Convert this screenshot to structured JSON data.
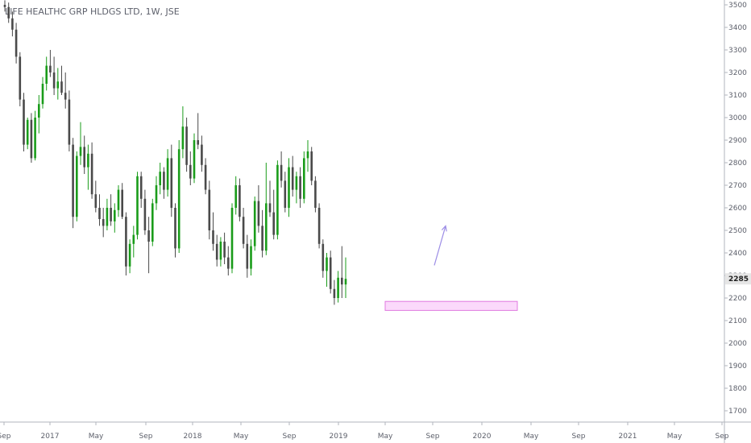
{
  "chart_data": {
    "type": "candlestick",
    "title": "LIFE HEALTHC GRP HLDGS LTD, 1W, JSE",
    "x_tick_labels": [
      "Sep",
      "2017",
      "May",
      "Sep",
      "2018",
      "May",
      "Sep",
      "2019",
      "May",
      "Sep",
      "2020",
      "May",
      "Sep",
      "2021",
      "May",
      "Sep"
    ],
    "y_tick_labels": [
      "3500",
      "3400",
      "3300",
      "3200",
      "3100",
      "3000",
      "2900",
      "2800",
      "2700",
      "2600",
      "2500",
      "2400",
      "2300",
      "2200",
      "2100",
      "2000",
      "1900",
      "1800",
      "1700"
    ],
    "ylim": [
      1640,
      3530
    ],
    "last_price": "2285",
    "grid": false,
    "colors": {
      "up": "#1a9c1a",
      "down": "#4a4a4a",
      "wick_up": "#1a9c1a",
      "wick_down": "#4a4a4a",
      "zone_fill": "#fbd9fb",
      "zone_stroke": "#e07ae0",
      "arrow": "#9d8ee6"
    },
    "candles": [
      {
        "o": 3500,
        "h": 3520,
        "l": 3470,
        "c": 3490
      },
      {
        "o": 3490,
        "h": 3510,
        "l": 3420,
        "c": 3440
      },
      {
        "o": 3440,
        "h": 3470,
        "l": 3360,
        "c": 3390
      },
      {
        "o": 3390,
        "h": 3420,
        "l": 3240,
        "c": 3270
      },
      {
        "o": 3270,
        "h": 3290,
        "l": 3050,
        "c": 3080
      },
      {
        "o": 3080,
        "h": 3110,
        "l": 2850,
        "c": 2880
      },
      {
        "o": 2880,
        "h": 3000,
        "l": 2860,
        "c": 2990
      },
      {
        "o": 2990,
        "h": 3020,
        "l": 2800,
        "c": 2820
      },
      {
        "o": 2820,
        "h": 3030,
        "l": 2810,
        "c": 3000
      },
      {
        "o": 3000,
        "h": 3100,
        "l": 2930,
        "c": 3060
      },
      {
        "o": 3060,
        "h": 3180,
        "l": 3040,
        "c": 3150
      },
      {
        "o": 3150,
        "h": 3270,
        "l": 3120,
        "c": 3230
      },
      {
        "o": 3230,
        "h": 3300,
        "l": 3180,
        "c": 3200
      },
      {
        "o": 3200,
        "h": 3270,
        "l": 3100,
        "c": 3130
      },
      {
        "o": 3130,
        "h": 3220,
        "l": 3080,
        "c": 3160
      },
      {
        "o": 3160,
        "h": 3230,
        "l": 3100,
        "c": 3110
      },
      {
        "o": 3110,
        "h": 3200,
        "l": 3040,
        "c": 3080
      },
      {
        "o": 3080,
        "h": 3120,
        "l": 2850,
        "c": 2880
      },
      {
        "o": 2880,
        "h": 2910,
        "l": 2510,
        "c": 2560
      },
      {
        "o": 2560,
        "h": 2850,
        "l": 2540,
        "c": 2830
      },
      {
        "o": 2830,
        "h": 2980,
        "l": 2790,
        "c": 2870
      },
      {
        "o": 2870,
        "h": 2920,
        "l": 2750,
        "c": 2780
      },
      {
        "o": 2780,
        "h": 2880,
        "l": 2680,
        "c": 2840
      },
      {
        "o": 2840,
        "h": 2890,
        "l": 2640,
        "c": 2660
      },
      {
        "o": 2660,
        "h": 2720,
        "l": 2580,
        "c": 2600
      },
      {
        "o": 2600,
        "h": 2660,
        "l": 2520,
        "c": 2550
      },
      {
        "o": 2550,
        "h": 2600,
        "l": 2470,
        "c": 2520
      },
      {
        "o": 2520,
        "h": 2640,
        "l": 2500,
        "c": 2600
      },
      {
        "o": 2600,
        "h": 2660,
        "l": 2520,
        "c": 2540
      },
      {
        "o": 2540,
        "h": 2620,
        "l": 2490,
        "c": 2590
      },
      {
        "o": 2590,
        "h": 2700,
        "l": 2560,
        "c": 2680
      },
      {
        "o": 2680,
        "h": 2710,
        "l": 2550,
        "c": 2560
      },
      {
        "o": 2560,
        "h": 2580,
        "l": 2300,
        "c": 2340
      },
      {
        "o": 2340,
        "h": 2460,
        "l": 2310,
        "c": 2440
      },
      {
        "o": 2440,
        "h": 2520,
        "l": 2380,
        "c": 2480
      },
      {
        "o": 2480,
        "h": 2760,
        "l": 2460,
        "c": 2740
      },
      {
        "o": 2740,
        "h": 2760,
        "l": 2600,
        "c": 2640
      },
      {
        "o": 2640,
        "h": 2680,
        "l": 2480,
        "c": 2500
      },
      {
        "o": 2500,
        "h": 2560,
        "l": 2310,
        "c": 2450
      },
      {
        "o": 2450,
        "h": 2640,
        "l": 2430,
        "c": 2620
      },
      {
        "o": 2620,
        "h": 2740,
        "l": 2590,
        "c": 2700
      },
      {
        "o": 2700,
        "h": 2800,
        "l": 2660,
        "c": 2760
      },
      {
        "o": 2760,
        "h": 2780,
        "l": 2640,
        "c": 2680
      },
      {
        "o": 2680,
        "h": 2860,
        "l": 2650,
        "c": 2820
      },
      {
        "o": 2820,
        "h": 2880,
        "l": 2560,
        "c": 2600
      },
      {
        "o": 2600,
        "h": 2620,
        "l": 2380,
        "c": 2420
      },
      {
        "o": 2420,
        "h": 2900,
        "l": 2400,
        "c": 2860
      },
      {
        "o": 2860,
        "h": 3050,
        "l": 2820,
        "c": 2960
      },
      {
        "o": 2960,
        "h": 3000,
        "l": 2760,
        "c": 2790
      },
      {
        "o": 2790,
        "h": 2850,
        "l": 2700,
        "c": 2730
      },
      {
        "o": 2730,
        "h": 2930,
        "l": 2710,
        "c": 2900
      },
      {
        "o": 2900,
        "h": 3020,
        "l": 2860,
        "c": 2880
      },
      {
        "o": 2880,
        "h": 2920,
        "l": 2760,
        "c": 2790
      },
      {
        "o": 2790,
        "h": 2820,
        "l": 2660,
        "c": 2680
      },
      {
        "o": 2680,
        "h": 2720,
        "l": 2460,
        "c": 2500
      },
      {
        "o": 2500,
        "h": 2580,
        "l": 2410,
        "c": 2440
      },
      {
        "o": 2440,
        "h": 2480,
        "l": 2340,
        "c": 2370
      },
      {
        "o": 2370,
        "h": 2470,
        "l": 2340,
        "c": 2450
      },
      {
        "o": 2450,
        "h": 2490,
        "l": 2350,
        "c": 2380
      },
      {
        "o": 2380,
        "h": 2430,
        "l": 2300,
        "c": 2330
      },
      {
        "o": 2330,
        "h": 2620,
        "l": 2310,
        "c": 2600
      },
      {
        "o": 2600,
        "h": 2740,
        "l": 2570,
        "c": 2700
      },
      {
        "o": 2700,
        "h": 2730,
        "l": 2540,
        "c": 2560
      },
      {
        "o": 2560,
        "h": 2600,
        "l": 2420,
        "c": 2440
      },
      {
        "o": 2440,
        "h": 2480,
        "l": 2290,
        "c": 2330
      },
      {
        "o": 2330,
        "h": 2460,
        "l": 2300,
        "c": 2430
      },
      {
        "o": 2430,
        "h": 2650,
        "l": 2410,
        "c": 2630
      },
      {
        "o": 2630,
        "h": 2700,
        "l": 2490,
        "c": 2520
      },
      {
        "o": 2520,
        "h": 2590,
        "l": 2380,
        "c": 2410
      },
      {
        "o": 2410,
        "h": 2800,
        "l": 2390,
        "c": 2620
      },
      {
        "o": 2620,
        "h": 2720,
        "l": 2560,
        "c": 2580
      },
      {
        "o": 2580,
        "h": 2680,
        "l": 2460,
        "c": 2480
      },
      {
        "o": 2480,
        "h": 2810,
        "l": 2460,
        "c": 2790
      },
      {
        "o": 2790,
        "h": 2850,
        "l": 2690,
        "c": 2720
      },
      {
        "o": 2720,
        "h": 2760,
        "l": 2580,
        "c": 2600
      },
      {
        "o": 2600,
        "h": 2820,
        "l": 2560,
        "c": 2780
      },
      {
        "o": 2780,
        "h": 2830,
        "l": 2650,
        "c": 2680
      },
      {
        "o": 2680,
        "h": 2760,
        "l": 2620,
        "c": 2740
      },
      {
        "o": 2740,
        "h": 2780,
        "l": 2600,
        "c": 2640
      },
      {
        "o": 2640,
        "h": 2850,
        "l": 2620,
        "c": 2820
      },
      {
        "o": 2820,
        "h": 2900,
        "l": 2760,
        "c": 2850
      },
      {
        "o": 2850,
        "h": 2870,
        "l": 2700,
        "c": 2720
      },
      {
        "o": 2720,
        "h": 2740,
        "l": 2580,
        "c": 2600
      },
      {
        "o": 2600,
        "h": 2620,
        "l": 2420,
        "c": 2440
      },
      {
        "o": 2440,
        "h": 2460,
        "l": 2290,
        "c": 2320
      },
      {
        "o": 2320,
        "h": 2400,
        "l": 2250,
        "c": 2380
      },
      {
        "o": 2380,
        "h": 2410,
        "l": 2220,
        "c": 2240
      },
      {
        "o": 2240,
        "h": 2280,
        "l": 2170,
        "c": 2200
      },
      {
        "o": 2200,
        "h": 2320,
        "l": 2180,
        "c": 2290
      },
      {
        "o": 2290,
        "h": 2430,
        "l": 2200,
        "c": 2260
      },
      {
        "o": 2260,
        "h": 2380,
        "l": 2200,
        "c": 2285
      }
    ],
    "annotations": {
      "support_zone": {
        "price_low": 2145,
        "price_high": 2185
      },
      "arrow": {
        "from_price": 2345,
        "to_price": 2520
      }
    }
  }
}
